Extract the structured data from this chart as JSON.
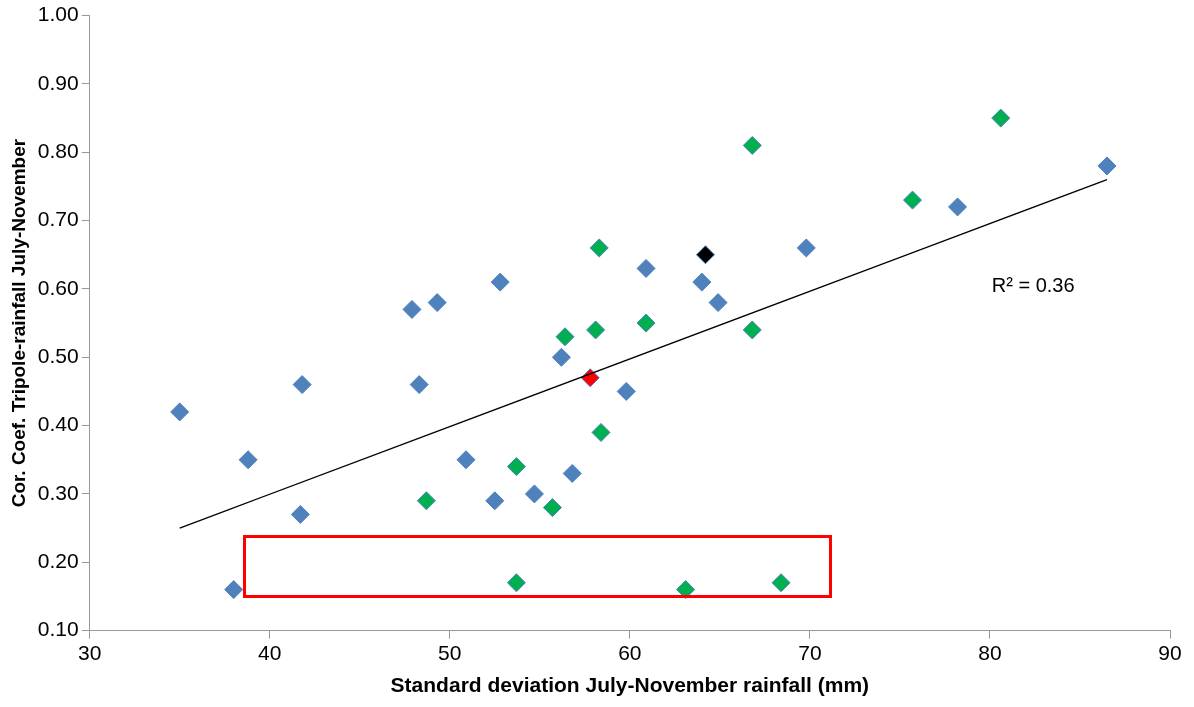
{
  "chart_data": {
    "type": "scatter",
    "xlabel": "Standard deviation July-November rainfall (mm)",
    "ylabel": "Cor. Coef. Tripole-rainfall July-November",
    "xlim": [
      30,
      90
    ],
    "xticks": [
      30,
      40,
      50,
      60,
      70,
      80,
      90
    ],
    "ylim": [
      0.1,
      1.0
    ],
    "yticks": [
      {
        "value": 0.1,
        "label": "0.10"
      },
      {
        "value": 0.2,
        "label": "0.20"
      },
      {
        "value": 0.3,
        "label": "0.30"
      },
      {
        "value": 0.4,
        "label": "0.40"
      },
      {
        "value": 0.5,
        "label": "0.50"
      },
      {
        "value": 0.6,
        "label": "0.60"
      },
      {
        "value": 0.7,
        "label": "0.70"
      },
      {
        "value": 0.8,
        "label": "0.80"
      },
      {
        "value": 0.9,
        "label": "0.90"
      },
      {
        "value": 1.0,
        "label": "1.00"
      }
    ],
    "grid": false,
    "legend": false,
    "marker": "diamond",
    "annotations": [
      "R² = 0.36"
    ],
    "series": [
      {
        "color": "#4f81bd",
        "x": [
          35.0,
          38.0,
          38.8,
          41.8,
          41.7,
          47.9,
          49.3,
          48.3,
          52.8,
          50.9,
          52.5,
          54.7,
          56.8,
          56.2,
          59.8,
          60.9,
          64.0,
          64.9,
          69.8,
          78.2,
          86.5
        ],
        "values": [
          0.42,
          0.16,
          0.35,
          0.46,
          0.27,
          0.57,
          0.58,
          0.46,
          0.61,
          0.35,
          0.29,
          0.3,
          0.33,
          0.5,
          0.45,
          0.63,
          0.61,
          0.58,
          0.66,
          0.72,
          0.78
        ]
      },
      {
        "color": "#00b050",
        "x": [
          80.6,
          66.8,
          75.7,
          58.3,
          60.9,
          58.1,
          56.4,
          66.8,
          58.4,
          55.7,
          48.7,
          53.7,
          53.7,
          63.1,
          68.4
        ],
        "values": [
          0.85,
          0.81,
          0.73,
          0.66,
          0.55,
          0.54,
          0.53,
          0.54,
          0.39,
          0.28,
          0.29,
          0.34,
          0.17,
          0.16,
          0.17
        ]
      },
      {
        "color": "#ff0000",
        "x": [
          57.8
        ],
        "values": [
          0.47
        ]
      },
      {
        "color": "#000000",
        "x": [
          64.2
        ],
        "values": [
          0.65
        ]
      },
      {
        "type": "line",
        "color": "#000000",
        "marker": "none",
        "x": [
          35.0,
          86.5
        ],
        "values": [
          0.25,
          0.76
        ]
      }
    ]
  }
}
